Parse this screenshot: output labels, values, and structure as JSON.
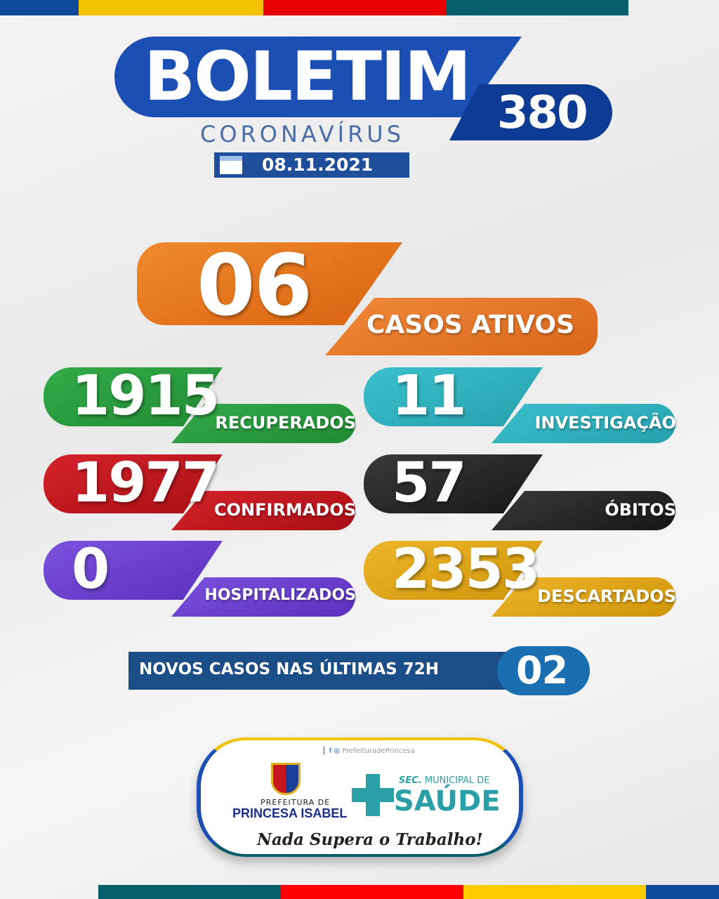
{
  "header": {
    "title": "BOLETIM",
    "number": "380",
    "subtitle": "CORONAVÍRUS",
    "date": "08.11.2021"
  },
  "colors": {
    "blue": "#1b4fb3",
    "yellow": "#f2c200",
    "red": "#e60000",
    "teal": "#075e6b",
    "orange": "#e6731b",
    "green": "#2a9b3c",
    "crimson": "#c4161c",
    "purple": "#6b40cf",
    "cyan": "#2fb2bf",
    "black": "#262626",
    "gold": "#e0a514"
  },
  "main": {
    "value": "06",
    "label": "CASOS ATIVOS"
  },
  "stats": [
    {
      "value": "1915",
      "label": "RECUPERADOS"
    },
    {
      "value": "11",
      "label": "INVESTIGAÇÃO"
    },
    {
      "value": "1977",
      "label": "CONFIRMADOS"
    },
    {
      "value": "57",
      "label": "ÓBITOS"
    },
    {
      "value": "0",
      "label": "HOSPITALIZADOS"
    },
    {
      "value": "2353",
      "label": "DESCARTADOS"
    }
  ],
  "new_cases": {
    "label": "NOVOS CASOS NAS ÚLTIMAS 72H",
    "value": "02"
  },
  "footer": {
    "social": "PrefeituradePrincesa",
    "pref_small": "PREFEITURA DE",
    "pref_big": "PRINCESA ISABEL",
    "sec_small_bold": "SEC.",
    "sec_small": "MUNICIPAL DE",
    "sec_big": "SAÚDE",
    "slogan": "Nada Supera o Trabalho!"
  }
}
